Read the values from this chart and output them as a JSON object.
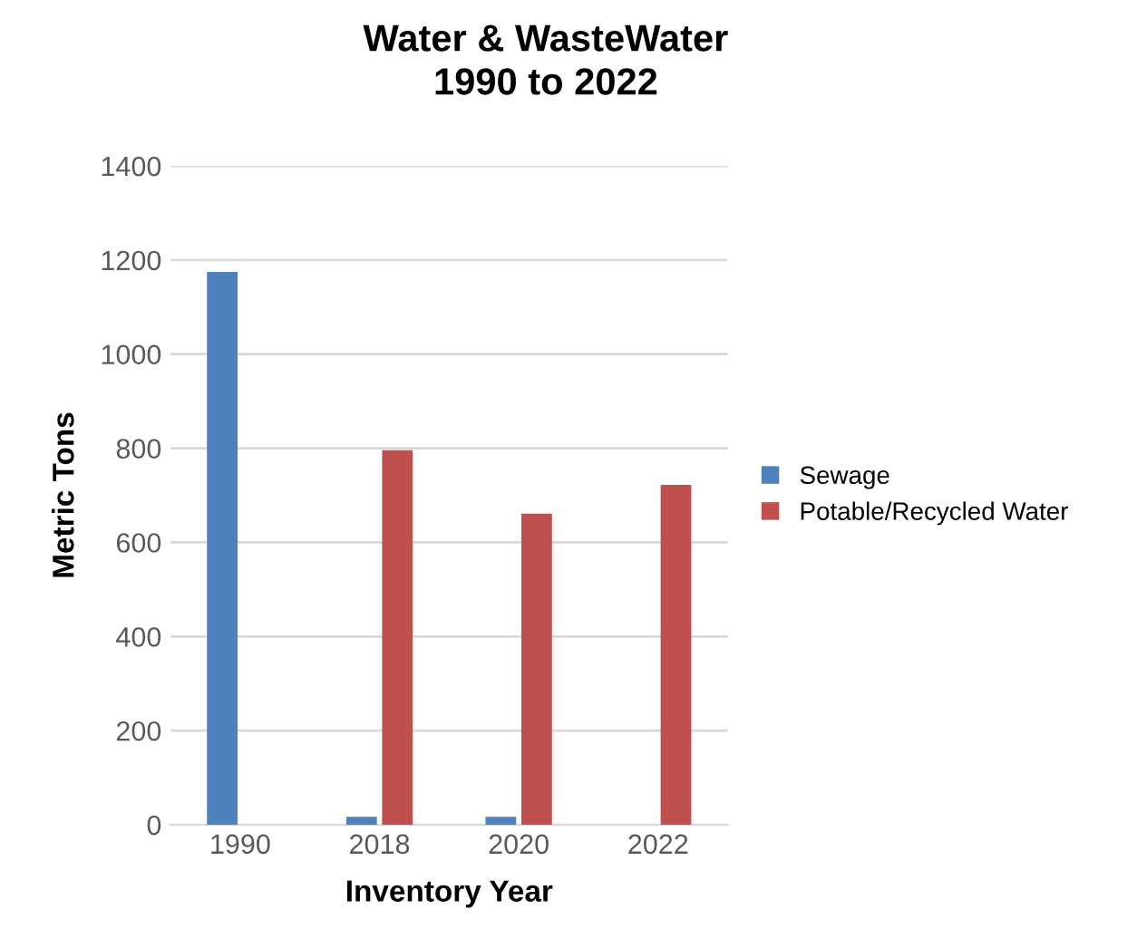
{
  "chart_data": {
    "type": "bar",
    "title": "Water & WasteWater\n1990 to 2022",
    "xlabel": "Inventory Year",
    "ylabel": "Metric Tons",
    "categories": [
      "1990",
      "2018",
      "2020",
      "2022"
    ],
    "series": [
      {
        "name": "Sewage",
        "color": "#4f81bd",
        "values": [
          1175,
          17,
          17,
          null
        ]
      },
      {
        "name": "Potable/Recycled Water",
        "color": "#c0504d",
        "values": [
          null,
          796,
          661,
          722
        ]
      }
    ],
    "ylim": [
      0,
      1400
    ],
    "yticks": [
      0,
      200,
      400,
      600,
      800,
      1000,
      1200,
      1400
    ],
    "grid": "y",
    "legend": "right"
  }
}
